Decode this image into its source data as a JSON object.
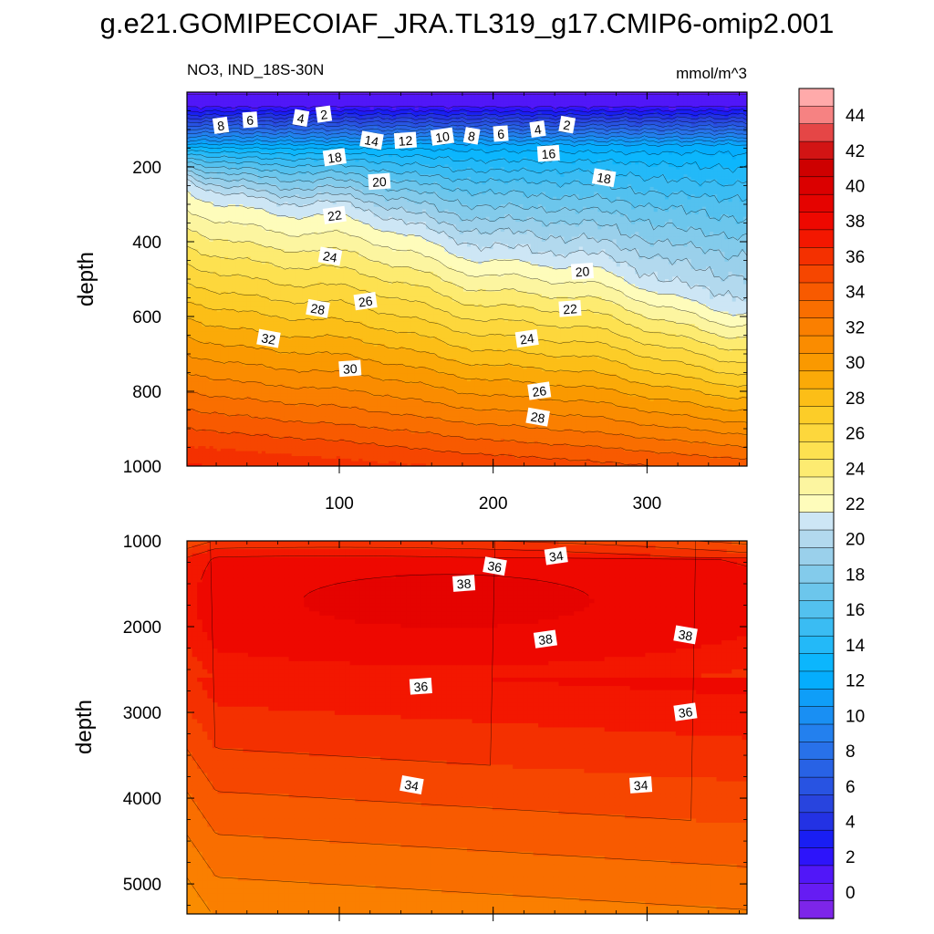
{
  "figure": {
    "title": "g.e21.GOMIPECOIAF_JRA.TL319_g17.CMIP6-omip2.001",
    "variable_label": "NO3, IND_18S-30N",
    "units_label": "mmol/m^3"
  },
  "chart_data": [
    {
      "type": "heatmap",
      "panel": "upper",
      "variable": "NO3",
      "region": "IND_18S-30N",
      "units": "mmol/m^3",
      "xlabel": "",
      "ylabel": "depth",
      "xlim": [
        1,
        365
      ],
      "ylim": [
        1000,
        0
      ],
      "x_ticks": [
        100,
        200,
        300
      ],
      "y_ticks": [
        200,
        400,
        600,
        800,
        1000
      ],
      "contour_interval": 1,
      "contour_labels": [
        {
          "value": 2,
          "x": 90,
          "depth": 60
        },
        {
          "value": 4,
          "x": 75,
          "depth": 70
        },
        {
          "value": 6,
          "x": 42,
          "depth": 75
        },
        {
          "value": 8,
          "x": 23,
          "depth": 90
        },
        {
          "value": 14,
          "x": 121,
          "depth": 130
        },
        {
          "value": 12,
          "x": 143,
          "depth": 130
        },
        {
          "value": 10,
          "x": 167,
          "depth": 120
        },
        {
          "value": 8,
          "x": 186,
          "depth": 118
        },
        {
          "value": 6,
          "x": 205,
          "depth": 112
        },
        {
          "value": 4,
          "x": 229,
          "depth": 100
        },
        {
          "value": 2,
          "x": 248,
          "depth": 88
        },
        {
          "value": 16,
          "x": 236,
          "depth": 165
        },
        {
          "value": 18,
          "x": 97,
          "depth": 175
        },
        {
          "value": 18,
          "x": 272,
          "depth": 230
        },
        {
          "value": 20,
          "x": 126,
          "depth": 240
        },
        {
          "value": 22,
          "x": 97,
          "depth": 330
        },
        {
          "value": 24,
          "x": 94,
          "depth": 440
        },
        {
          "value": 20,
          "x": 258,
          "depth": 480
        },
        {
          "value": 26,
          "x": 117,
          "depth": 560
        },
        {
          "value": 28,
          "x": 86,
          "depth": 580
        },
        {
          "value": 22,
          "x": 250,
          "depth": 580
        },
        {
          "value": 24,
          "x": 222,
          "depth": 660
        },
        {
          "value": 32,
          "x": 54,
          "depth": 660
        },
        {
          "value": 30,
          "x": 107,
          "depth": 740
        },
        {
          "value": 26,
          "x": 230,
          "depth": 800
        },
        {
          "value": 28,
          "x": 229,
          "depth": 870
        }
      ]
    },
    {
      "type": "heatmap",
      "panel": "lower",
      "variable": "NO3",
      "units": "mmol/m^3",
      "xlabel": "",
      "ylabel": "depth",
      "xlim": [
        1,
        365
      ],
      "ylim": [
        5350,
        1000
      ],
      "y_ticks": [
        1000,
        2000,
        3000,
        4000,
        5000
      ],
      "contour_interval": 1,
      "contour_labels": [
        {
          "value": 34,
          "x": 241,
          "depth": 1180
        },
        {
          "value": 36,
          "x": 201,
          "depth": 1300
        },
        {
          "value": 38,
          "x": 181,
          "depth": 1500
        },
        {
          "value": 38,
          "x": 234,
          "depth": 2150
        },
        {
          "value": 38,
          "x": 325,
          "depth": 2100
        },
        {
          "value": 36,
          "x": 153,
          "depth": 2700
        },
        {
          "value": 36,
          "x": 325,
          "depth": 3000
        },
        {
          "value": 34,
          "x": 147,
          "depth": 3850
        },
        {
          "value": 34,
          "x": 296,
          "depth": 3850
        }
      ]
    }
  ],
  "colorbar": {
    "labels": [
      "0",
      "2",
      "4",
      "6",
      "8",
      "10",
      "12",
      "14",
      "16",
      "18",
      "20",
      "22",
      "24",
      "26",
      "28",
      "30",
      "32",
      "34",
      "36",
      "38",
      "40",
      "42",
      "44"
    ],
    "min": -1,
    "max": 46,
    "step": 1
  }
}
